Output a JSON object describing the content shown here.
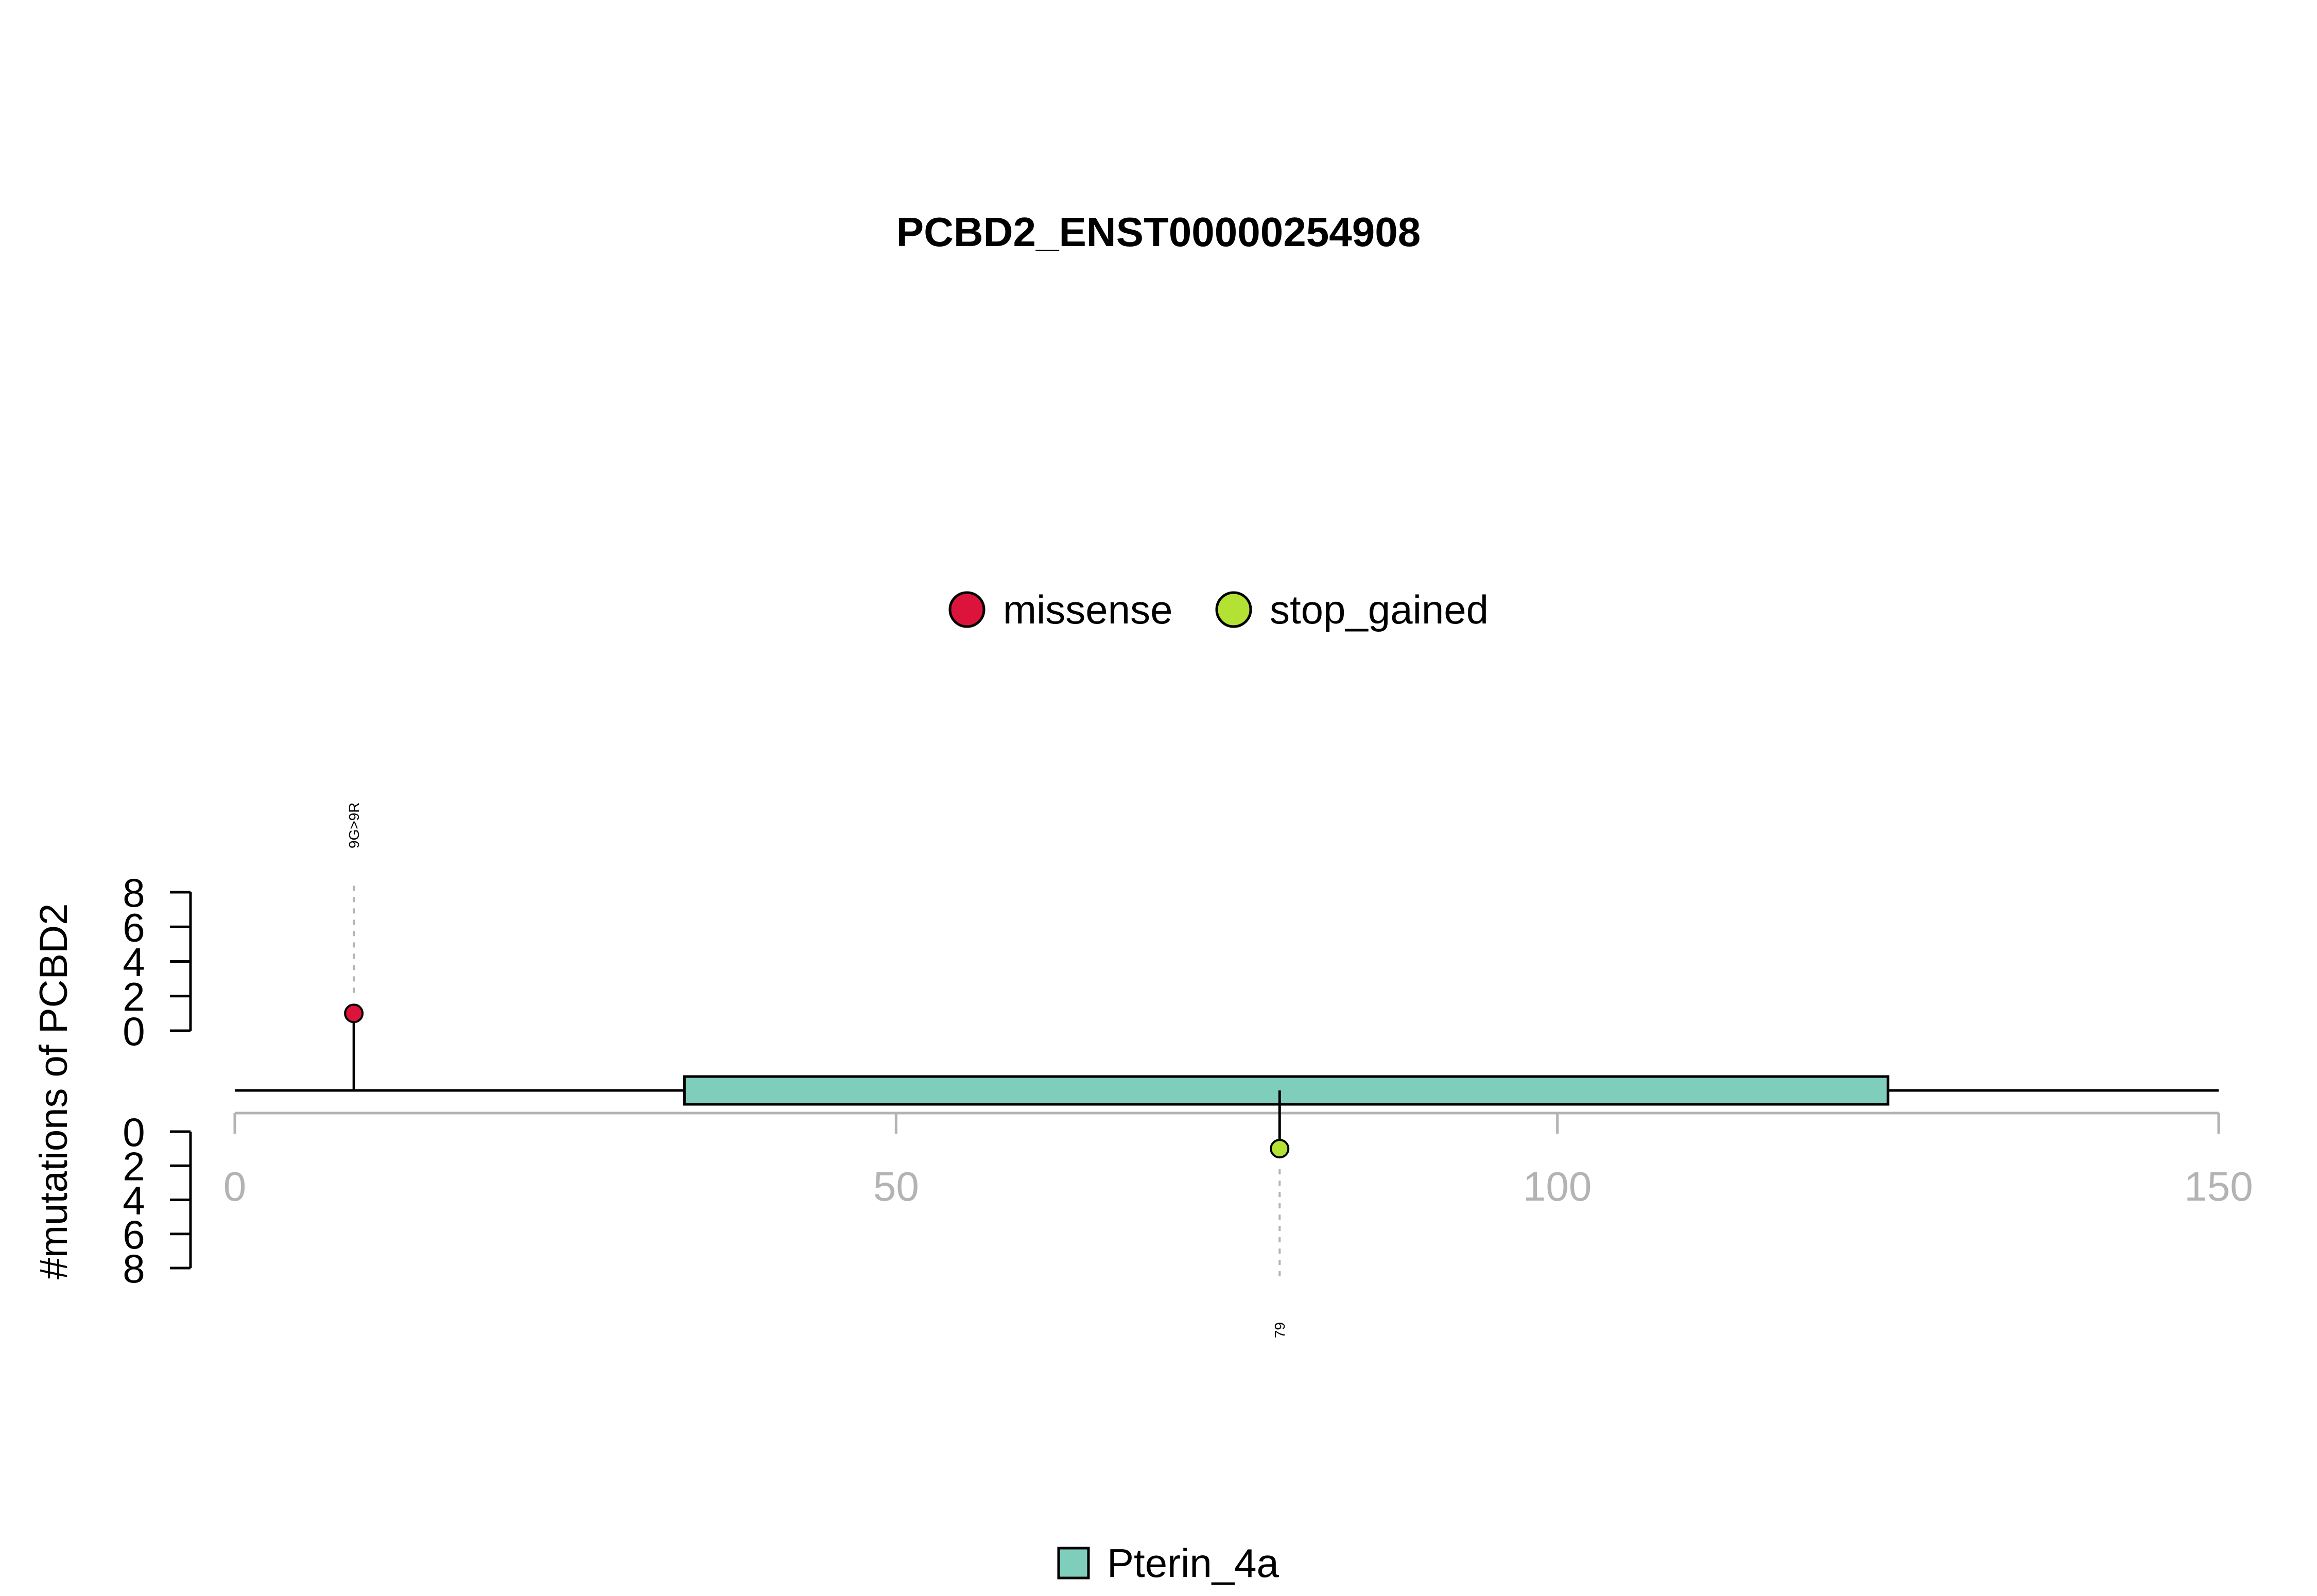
{
  "chart_data": {
    "type": "lollipop",
    "title": "PCBD2_ENST00000254908",
    "ylabel": "#mutations of PCBD2",
    "xlim": [
      0,
      150
    ],
    "x_ticks": [
      0,
      50,
      100,
      150
    ],
    "x_tick_labels": [
      "0",
      "50",
      "100",
      "150"
    ],
    "y_ticks": [
      0,
      2,
      4,
      6,
      8
    ],
    "y_tick_labels": [
      "0",
      "2",
      "4",
      "6",
      "8"
    ],
    "ylim": [
      0,
      8
    ],
    "protein_length": 150,
    "legend_top": [
      {
        "label": "missense",
        "color": "#DC143C"
      },
      {
        "label": "stop_gained",
        "color": "#B3E234"
      }
    ],
    "legend_bottom": [
      {
        "label": "Pterin_4a",
        "color": "#7FCDBB"
      }
    ],
    "domains": [
      {
        "name": "Pterin_4a",
        "start": 34,
        "end": 125,
        "color": "#7FCDBB"
      }
    ],
    "mutations": [
      {
        "position": 9,
        "count": 1,
        "label": "9G>9R",
        "type": "missense",
        "side": "top",
        "color": "#DC143C"
      },
      {
        "position": 79,
        "count": 1,
        "label": "79",
        "type": "stop_gained",
        "side": "bottom",
        "color": "#B3E234"
      }
    ]
  }
}
